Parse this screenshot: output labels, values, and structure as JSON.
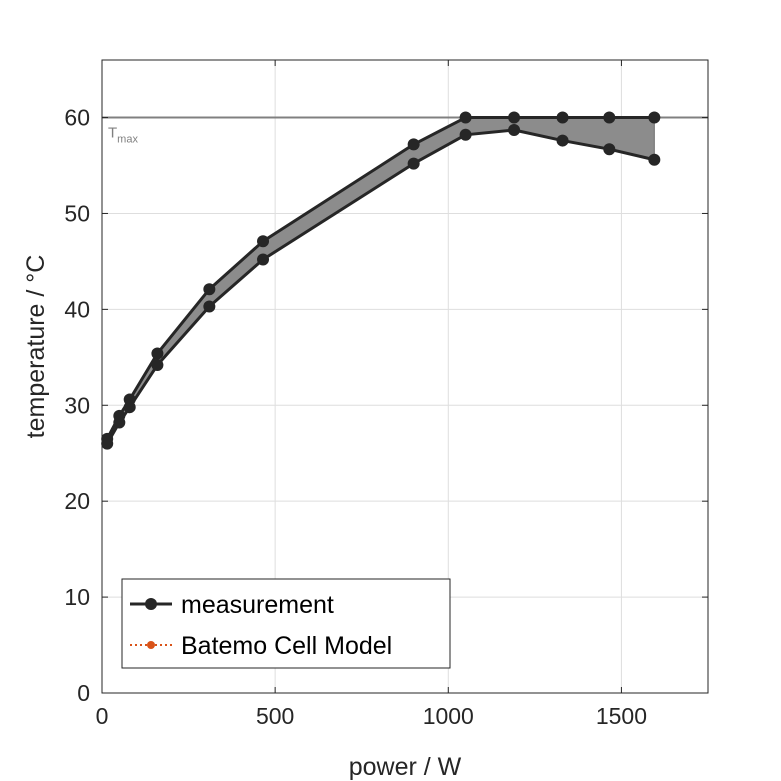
{
  "chart_data": {
    "type": "line",
    "xlabel": "power / W",
    "ylabel": "temperature / °C",
    "xlim": [
      0,
      1750
    ],
    "ylim": [
      0,
      66
    ],
    "xticks": [
      0,
      500,
      1000,
      1500
    ],
    "yticks": [
      0,
      10,
      20,
      30,
      40,
      50,
      60
    ],
    "grid": true,
    "legend_position": "bottom-left",
    "reference_line": {
      "y": 60,
      "label": "T",
      "label_sub": "max",
      "color": "#808080"
    },
    "band_fill_color": "#8c8c8c",
    "series": [
      {
        "name": "measurement",
        "color": "#262626",
        "marker": "circle",
        "x": [
          15,
          50,
          80,
          160,
          310,
          465,
          900,
          1050,
          1190,
          1330,
          1465,
          1595
        ],
        "upper": [
          26.5,
          28.9,
          30.6,
          35.4,
          42.1,
          47.1,
          57.2,
          60.0,
          60.0,
          60.0,
          60.0,
          60.0
        ],
        "lower": [
          26.0,
          28.2,
          29.8,
          34.2,
          40.3,
          45.2,
          55.2,
          58.2,
          58.7,
          57.6,
          56.7,
          55.6
        ]
      },
      {
        "name": "Batemo Cell Model",
        "color": "#d95319",
        "marker": "circle",
        "linestyle": "dotted",
        "x": [],
        "values": []
      }
    ]
  }
}
